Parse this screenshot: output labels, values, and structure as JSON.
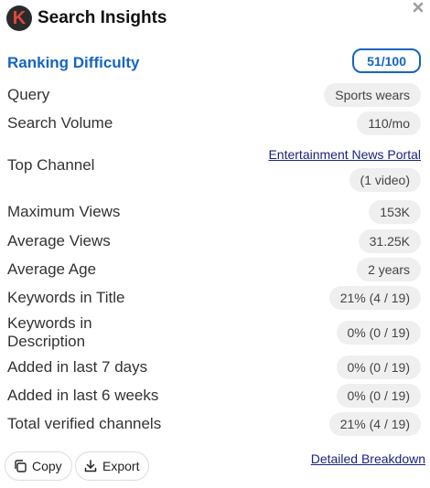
{
  "header": {
    "logo_letter": "K",
    "title": "Search Insights",
    "close_icon": "close-icon"
  },
  "ranking_difficulty": {
    "label": "Ranking Difficulty",
    "value": "51/100",
    "accent_color": "#1565c0"
  },
  "rows": {
    "query": {
      "label": "Query",
      "value": "Sports wears"
    },
    "search_volume": {
      "label": "Search Volume",
      "value": "110/mo"
    },
    "top_channel": {
      "label": "Top Channel",
      "link": "Entertainment News Portal",
      "videos": "(1 video)"
    },
    "maximum_views": {
      "label": "Maximum Views",
      "value": "153K"
    },
    "average_views": {
      "label": "Average Views",
      "value": "31.25K"
    },
    "average_age": {
      "label": "Average Age",
      "value": "2 years"
    },
    "keywords_in_title": {
      "label": "Keywords in Title",
      "value": "21% (4 / 19)"
    },
    "keywords_in_description": {
      "label_line1": "Keywords in",
      "label_line2": "Description",
      "value": "0% (0 / 19)"
    },
    "added_last_7_days": {
      "label": "Added in last 7 days",
      "value": "0% (0 / 19)"
    },
    "added_last_6_weeks": {
      "label": "Added in last 6 weeks",
      "value": "0% (0 / 19)"
    },
    "total_verified_channels": {
      "label": "Total verified channels",
      "value": "21% (4 / 19)"
    }
  },
  "footer": {
    "copy_label": "Copy",
    "copy_icon": "copy-icon",
    "export_label": "Export",
    "export_icon": "download-icon",
    "breakdown_link": "Detailed Breakdown"
  }
}
